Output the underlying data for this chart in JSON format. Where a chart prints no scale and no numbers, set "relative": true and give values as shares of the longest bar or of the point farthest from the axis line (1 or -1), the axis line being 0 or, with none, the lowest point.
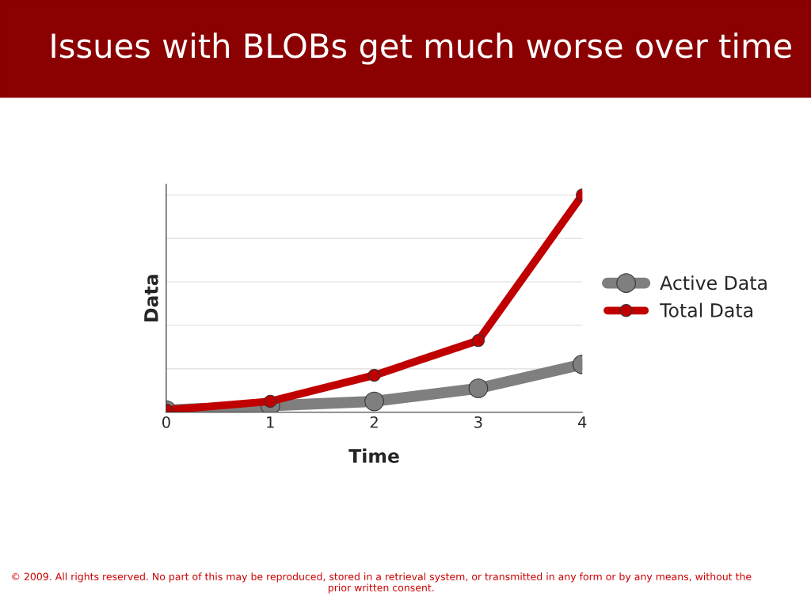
{
  "chart_data": {
    "type": "line",
    "title": "Issues with BLOBs get much worse over time",
    "xlabel": "Time",
    "ylabel": "Data",
    "x": [
      0,
      1,
      2,
      3,
      4
    ],
    "xlim": [
      0,
      4
    ],
    "xticks": [
      0,
      1,
      2,
      3,
      4
    ],
    "relative": true,
    "grid": "y",
    "legend": "right",
    "marker": "circle",
    "line_style": "solid",
    "series": [
      {
        "name": "Active Data",
        "color": "#7f7f7f",
        "values": [
          0.01,
          0.03,
          0.05,
          0.11,
          0.22
        ]
      },
      {
        "name": "Total Data",
        "color": "#c00000",
        "values": [
          0.01,
          0.05,
          0.17,
          0.33,
          1
        ]
      }
    ],
    "annotations": [
      "© 2009. All rights reserved. No part of this may be reproduced, stored in a retrieval system, or transmitted in any form or by any means, without the prior written consent."
    ]
  }
}
